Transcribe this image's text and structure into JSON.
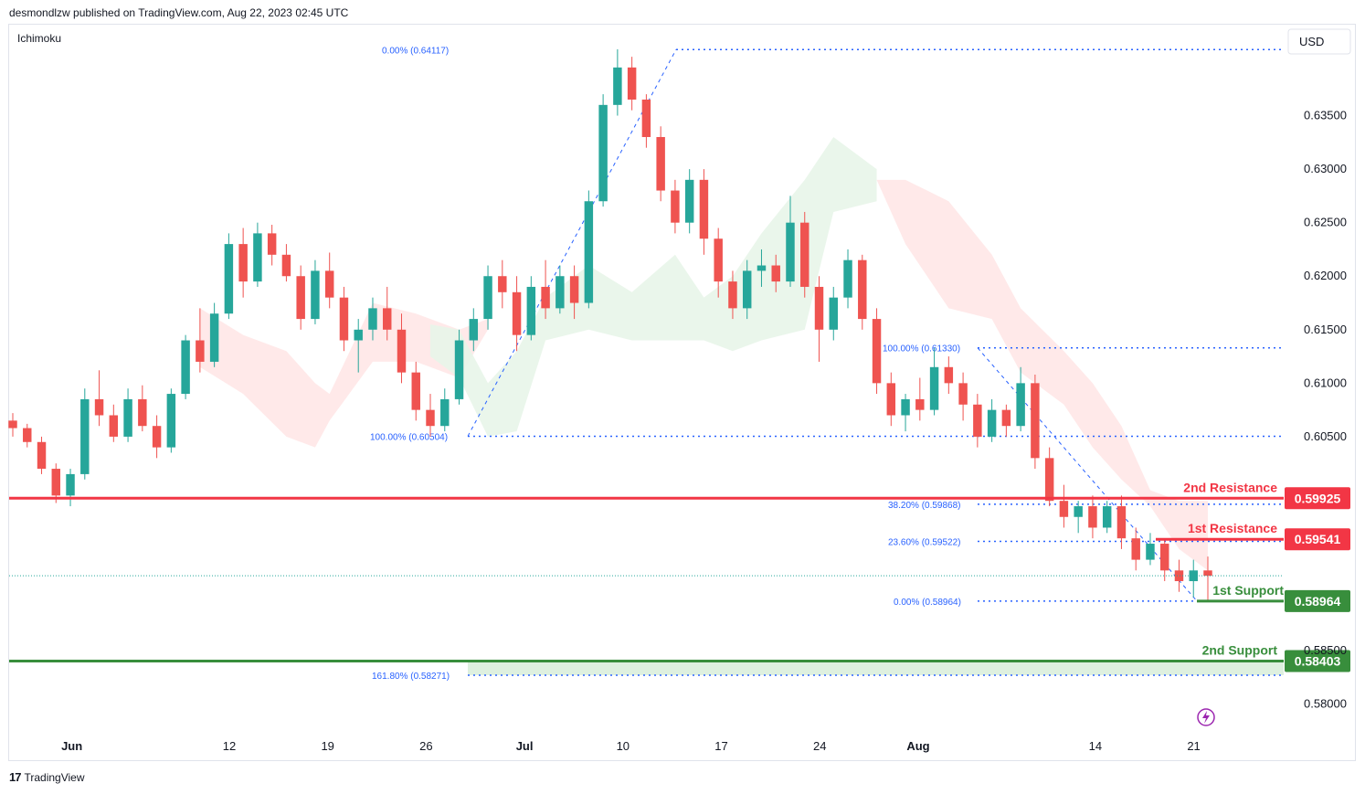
{
  "header": {
    "text": "desmondlzw published on TradingView.com, Aug 22, 2023 02:45 UTC"
  },
  "indicator_label": "Ichimoku",
  "currency": "USD",
  "footer": {
    "brand": "TradingView"
  },
  "colors": {
    "up": "#26a69a",
    "down": "#ef5350",
    "resistance": "#f23645",
    "support": "#388e3c",
    "fib": "#2962ff",
    "cloud_bull": "#e8f5e9",
    "cloud_bear": "#ffe7e7"
  },
  "chart_data": {
    "type": "candlestick",
    "y_axis": {
      "ticks": [
        0.635,
        0.63,
        0.625,
        0.62,
        0.615,
        0.61,
        0.605,
        0.6,
        0.595,
        0.59,
        0.585,
        0.58
      ],
      "tick_labels": [
        "0.63500",
        "0.63000",
        "0.62500",
        "0.62000",
        "0.61500",
        "0.61000",
        "0.60500",
        "",
        "",
        "",
        "0.58500",
        "0.58000"
      ],
      "ylim": [
        0.5775,
        0.6435
      ]
    },
    "x_axis": {
      "labels": [
        {
          "text": "Jun",
          "i": 3
        },
        {
          "text": "12",
          "i": 11
        },
        {
          "text": "19",
          "i": 16
        },
        {
          "text": "26",
          "i": 21
        },
        {
          "text": "Jul",
          "i": 26
        },
        {
          "text": "10",
          "i": 31
        },
        {
          "text": "17",
          "i": 36
        },
        {
          "text": "24",
          "i": 41
        },
        {
          "text": "Aug",
          "i": 46
        },
        {
          "text": "14",
          "i": 55
        },
        {
          "text": "21",
          "i": 60
        }
      ],
      "bold": [
        "Jun",
        "Jul",
        "Aug"
      ]
    },
    "ohlc": [
      [
        0.6065,
        0.6072,
        0.605,
        0.6058
      ],
      [
        0.6058,
        0.6062,
        0.604,
        0.6045
      ],
      [
        0.6045,
        0.605,
        0.6015,
        0.602
      ],
      [
        0.602,
        0.6025,
        0.5988,
        0.5995
      ],
      [
        0.5995,
        0.602,
        0.5985,
        0.6015
      ],
      [
        0.6015,
        0.6095,
        0.601,
        0.6085
      ],
      [
        0.6085,
        0.6112,
        0.606,
        0.607
      ],
      [
        0.607,
        0.608,
        0.6045,
        0.605
      ],
      [
        0.605,
        0.6095,
        0.6045,
        0.6085
      ],
      [
        0.6085,
        0.6098,
        0.6055,
        0.606
      ],
      [
        0.606,
        0.607,
        0.603,
        0.604
      ],
      [
        0.604,
        0.6095,
        0.6035,
        0.609
      ],
      [
        0.609,
        0.6145,
        0.6085,
        0.614
      ],
      [
        0.614,
        0.617,
        0.611,
        0.612
      ],
      [
        0.612,
        0.6175,
        0.6115,
        0.6165
      ],
      [
        0.6165,
        0.624,
        0.616,
        0.623
      ],
      [
        0.623,
        0.6245,
        0.618,
        0.6195
      ],
      [
        0.6195,
        0.625,
        0.619,
        0.624
      ],
      [
        0.624,
        0.6248,
        0.621,
        0.622
      ],
      [
        0.622,
        0.623,
        0.6195,
        0.62
      ],
      [
        0.62,
        0.621,
        0.615,
        0.616
      ],
      [
        0.616,
        0.6215,
        0.6155,
        0.6205
      ],
      [
        0.6205,
        0.6222,
        0.617,
        0.618
      ],
      [
        0.618,
        0.619,
        0.613,
        0.614
      ],
      [
        0.614,
        0.616,
        0.611,
        0.615
      ],
      [
        0.615,
        0.618,
        0.614,
        0.617
      ],
      [
        0.617,
        0.619,
        0.614,
        0.615
      ],
      [
        0.615,
        0.6165,
        0.61,
        0.611
      ],
      [
        0.611,
        0.612,
        0.6065,
        0.6075
      ],
      [
        0.6075,
        0.609,
        0.605,
        0.606
      ],
      [
        0.606,
        0.6095,
        0.6055,
        0.6085
      ],
      [
        0.6085,
        0.615,
        0.608,
        0.614
      ],
      [
        0.614,
        0.617,
        0.613,
        0.616
      ],
      [
        0.616,
        0.621,
        0.615,
        0.62
      ],
      [
        0.62,
        0.6215,
        0.617,
        0.6185
      ],
      [
        0.6185,
        0.62,
        0.613,
        0.6145
      ],
      [
        0.6145,
        0.62,
        0.614,
        0.619
      ],
      [
        0.619,
        0.6215,
        0.616,
        0.617
      ],
      [
        0.617,
        0.621,
        0.6165,
        0.62
      ],
      [
        0.62,
        0.621,
        0.616,
        0.6175
      ],
      [
        0.6175,
        0.628,
        0.617,
        0.627
      ],
      [
        0.627,
        0.637,
        0.6265,
        0.636
      ],
      [
        0.636,
        0.6412,
        0.635,
        0.6395
      ],
      [
        0.6395,
        0.6405,
        0.6355,
        0.6365
      ],
      [
        0.6365,
        0.637,
        0.632,
        0.633
      ],
      [
        0.633,
        0.634,
        0.627,
        0.628
      ],
      [
        0.628,
        0.629,
        0.624,
        0.625
      ],
      [
        0.625,
        0.63,
        0.624,
        0.629
      ],
      [
        0.629,
        0.63,
        0.622,
        0.6235
      ],
      [
        0.6235,
        0.6245,
        0.618,
        0.6195
      ],
      [
        0.6195,
        0.6205,
        0.616,
        0.617
      ],
      [
        0.617,
        0.6215,
        0.616,
        0.6205
      ],
      [
        0.6205,
        0.6225,
        0.619,
        0.621
      ],
      [
        0.621,
        0.622,
        0.6185,
        0.6195
      ],
      [
        0.6195,
        0.6275,
        0.619,
        0.625
      ],
      [
        0.625,
        0.626,
        0.618,
        0.619
      ],
      [
        0.619,
        0.62,
        0.612,
        0.615
      ],
      [
        0.615,
        0.619,
        0.614,
        0.618
      ],
      [
        0.618,
        0.6225,
        0.617,
        0.6215
      ],
      [
        0.6215,
        0.622,
        0.615,
        0.616
      ],
      [
        0.616,
        0.617,
        0.609,
        0.61
      ],
      [
        0.61,
        0.611,
        0.606,
        0.607
      ],
      [
        0.607,
        0.609,
        0.6055,
        0.6085
      ],
      [
        0.6085,
        0.6105,
        0.6065,
        0.6075
      ],
      [
        0.6075,
        0.6133,
        0.607,
        0.6115
      ],
      [
        0.6115,
        0.6125,
        0.609,
        0.61
      ],
      [
        0.61,
        0.611,
        0.6065,
        0.608
      ],
      [
        0.608,
        0.609,
        0.604,
        0.605
      ],
      [
        0.605,
        0.6085,
        0.6045,
        0.6075
      ],
      [
        0.6075,
        0.608,
        0.605,
        0.606
      ],
      [
        0.606,
        0.6115,
        0.6055,
        0.61
      ],
      [
        0.61,
        0.6108,
        0.602,
        0.603
      ],
      [
        0.603,
        0.604,
        0.5985,
        0.599
      ],
      [
        0.599,
        0.6005,
        0.5965,
        0.5975
      ],
      [
        0.5975,
        0.599,
        0.596,
        0.5985
      ],
      [
        0.5985,
        0.5995,
        0.5955,
        0.5965
      ],
      [
        0.5965,
        0.599,
        0.596,
        0.5985
      ],
      [
        0.5985,
        0.5995,
        0.5945,
        0.5955
      ],
      [
        0.5955,
        0.5965,
        0.5925,
        0.5935
      ],
      [
        0.5935,
        0.596,
        0.593,
        0.595
      ],
      [
        0.595,
        0.5955,
        0.5915,
        0.5925
      ],
      [
        0.5925,
        0.5935,
        0.5905,
        0.5915
      ],
      [
        0.5915,
        0.5935,
        0.59,
        0.5925
      ],
      [
        0.5925,
        0.5938,
        0.5896,
        0.592
      ]
    ],
    "cloud": {
      "bull": [
        [
          29,
          0.6125,
          0.6155
        ],
        [
          31,
          0.6105,
          0.615
        ],
        [
          33,
          0.605,
          0.61
        ],
        [
          35,
          0.6055,
          0.613
        ],
        [
          37,
          0.614,
          0.618
        ],
        [
          40,
          0.615,
          0.621
        ],
        [
          43,
          0.614,
          0.6185
        ],
        [
          46,
          0.614,
          0.622
        ],
        [
          48,
          0.614,
          0.618
        ],
        [
          50,
          0.613,
          0.62
        ],
        [
          52,
          0.614,
          0.624
        ],
        [
          55,
          0.615,
          0.629
        ],
        [
          57,
          0.626,
          0.633
        ],
        [
          60,
          0.627,
          0.63
        ]
      ],
      "bear": [
        [
          13,
          0.6115,
          0.617
        ],
        [
          16,
          0.609,
          0.6145
        ],
        [
          19,
          0.605,
          0.613
        ],
        [
          21,
          0.604,
          0.61
        ],
        [
          22,
          0.6065,
          0.609
        ],
        [
          25,
          0.612,
          0.6175
        ],
        [
          28,
          0.612,
          0.6165
        ],
        [
          31,
          0.6105,
          0.615
        ],
        [
          33,
          0.615,
          0.616
        ]
      ],
      "bear2": [
        [
          60,
          0.629,
          0.629
        ],
        [
          62,
          0.623,
          0.629
        ],
        [
          65,
          0.617,
          0.627
        ],
        [
          68,
          0.616,
          0.622
        ],
        [
          70,
          0.611,
          0.617
        ],
        [
          73,
          0.608,
          0.613
        ],
        [
          75,
          0.604,
          0.61
        ],
        [
          77,
          0.601,
          0.606
        ],
        [
          79,
          0.5985,
          0.6
        ],
        [
          81,
          0.5945,
          0.599
        ],
        [
          83,
          0.5925,
          0.599
        ]
      ]
    },
    "fib_levels": [
      {
        "label": "0.00% (0.64117)",
        "value": 0.64117
      },
      {
        "label": "100.00% (0.60504)",
        "value": 0.60504
      },
      {
        "label": "100.00% (0.61330)",
        "value": 0.6133
      },
      {
        "label": "38.20% (0.59868)",
        "value": 0.59868
      },
      {
        "label": "23.60% (0.59522)",
        "value": 0.59522
      },
      {
        "label": "0.00% (0.58964)",
        "value": 0.58964
      },
      {
        "label": "161.80% (0.58271)",
        "value": 0.58271
      }
    ],
    "levels": [
      {
        "name": "2nd Resistance",
        "value": 0.59925,
        "label": "0.59925",
        "kind": "resistance"
      },
      {
        "name": "1st Resistance",
        "value": 0.59541,
        "label": "0.59541",
        "kind": "resistance"
      },
      {
        "name": "1st Support",
        "value": 0.58964,
        "label": "0.58964",
        "kind": "support"
      },
      {
        "name": "2nd Support",
        "value": 0.58403,
        "label": "0.58403",
        "kind": "support"
      }
    ],
    "current_price": 0.592
  }
}
